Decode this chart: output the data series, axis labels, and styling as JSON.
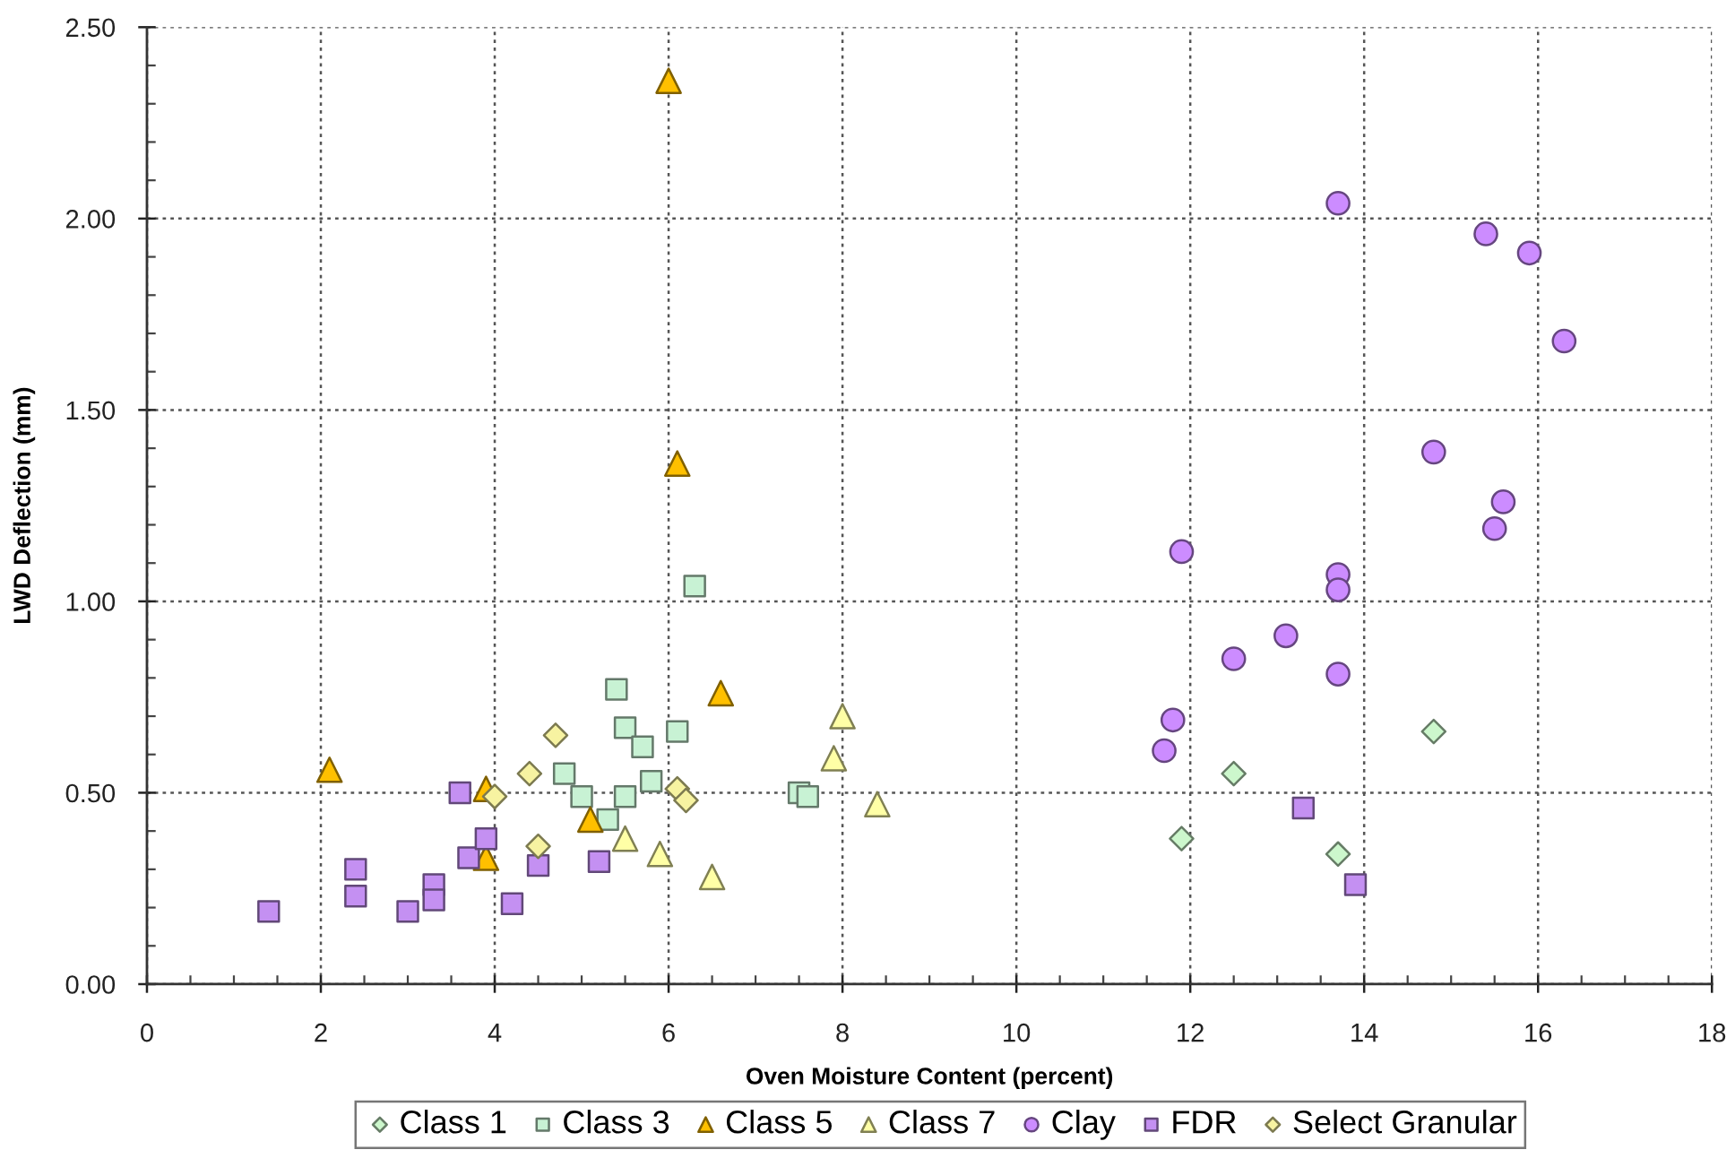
{
  "chart_data": {
    "type": "scatter",
    "xlabel": "Oven Moisture Content (percent)",
    "ylabel": "LWD Deflection (mm)",
    "xlim": [
      0,
      18
    ],
    "ylim": [
      0,
      2.5
    ],
    "xticks": [
      0,
      {
        "value": 0.5,
        "label": null
      },
      {
        "value": 1,
        "label": null
      },
      {
        "value": 1.5,
        "label": null
      },
      2,
      {
        "value": 2.5,
        "label": null
      },
      {
        "value": 3,
        "label": null
      },
      {
        "value": 3.5,
        "label": null
      },
      4,
      {
        "value": 4.5,
        "label": null
      },
      {
        "value": 5,
        "label": null
      },
      {
        "value": 5.5,
        "label": null
      },
      6,
      {
        "value": 6.5,
        "label": null
      },
      {
        "value": 7,
        "label": null
      },
      {
        "value": 7.5,
        "label": null
      },
      8,
      {
        "value": 8.5,
        "label": null
      },
      {
        "value": 9,
        "label": null
      },
      {
        "value": 9.5,
        "label": null
      },
      10,
      {
        "value": 10.5,
        "label": null
      },
      {
        "value": 11,
        "label": null
      },
      {
        "value": 11.5,
        "label": null
      },
      12,
      {
        "value": 12.5,
        "label": null
      },
      {
        "value": 13,
        "label": null
      },
      {
        "value": 13.5,
        "label": null
      },
      14,
      {
        "value": 14.5,
        "label": null
      },
      {
        "value": 15,
        "label": null
      },
      {
        "value": 15.5,
        "label": null
      },
      16,
      {
        "value": 16.5,
        "label": null
      },
      {
        "value": 17,
        "label": null
      },
      {
        "value": 17.5,
        "label": null
      },
      18
    ],
    "yticks": [
      {
        "value": 0,
        "label": "0.00"
      },
      {
        "value": 0.1,
        "label": null
      },
      {
        "value": 0.2,
        "label": null
      },
      {
        "value": 0.3,
        "label": null
      },
      {
        "value": 0.4,
        "label": null
      },
      {
        "value": 0.5,
        "label": "0.50"
      },
      {
        "value": 0.6,
        "label": null
      },
      {
        "value": 0.7,
        "label": null
      },
      {
        "value": 0.8,
        "label": null
      },
      {
        "value": 0.9,
        "label": null
      },
      {
        "value": 1.0,
        "label": "1.00"
      },
      {
        "value": 1.1,
        "label": null
      },
      {
        "value": 1.2,
        "label": null
      },
      {
        "value": 1.3,
        "label": null
      },
      {
        "value": 1.4,
        "label": null
      },
      {
        "value": 1.5,
        "label": "1.50"
      },
      {
        "value": 1.6,
        "label": null
      },
      {
        "value": 1.7,
        "label": null
      },
      {
        "value": 1.8,
        "label": null
      },
      {
        "value": 1.9,
        "label": null
      },
      {
        "value": 2.0,
        "label": "2.00"
      },
      {
        "value": 2.1,
        "label": null
      },
      {
        "value": 2.2,
        "label": null
      },
      {
        "value": 2.3,
        "label": null
      },
      {
        "value": 2.4,
        "label": null
      },
      {
        "value": 2.5,
        "label": "2.50"
      }
    ],
    "grid": true,
    "legend": "bottom",
    "series": [
      {
        "name": "Class 1",
        "marker": "diamond",
        "color": "#ccf7cc",
        "x": [
          11.9,
          12.5,
          13.7,
          14.8
        ],
        "values": [
          0.38,
          0.55,
          0.34,
          0.66
        ]
      },
      {
        "name": "Class 3",
        "marker": "square",
        "color": "#c8f2d4",
        "x": [
          6.3,
          5.4,
          5.5,
          5.7,
          6.1,
          4.8,
          5.0,
          5.5,
          5.3,
          5.8,
          7.5,
          7.6
        ],
        "values": [
          1.04,
          0.77,
          0.67,
          0.62,
          0.66,
          0.55,
          0.49,
          0.49,
          0.43,
          0.53,
          0.5,
          0.49
        ]
      },
      {
        "name": "Class 5",
        "marker": "triangle",
        "color": "#ffc000",
        "x": [
          6.0,
          6.1,
          6.6,
          2.1,
          3.9,
          3.9,
          5.1
        ],
        "values": [
          2.36,
          1.36,
          0.76,
          0.56,
          0.51,
          0.33,
          0.43
        ]
      },
      {
        "name": "Class 7",
        "marker": "triangle",
        "color": "#ffffa6",
        "x": [
          8.0,
          7.9,
          8.4,
          5.5,
          5.9,
          6.5
        ],
        "values": [
          0.7,
          0.59,
          0.47,
          0.38,
          0.34,
          0.28
        ]
      },
      {
        "name": "Clay",
        "marker": "circle",
        "color": "#cc8cff",
        "x": [
          13.7,
          15.4,
          15.9,
          16.3,
          14.8,
          15.6,
          15.5,
          11.9,
          13.7,
          13.7,
          13.1,
          12.5,
          13.7,
          11.8,
          11.7
        ],
        "values": [
          2.04,
          1.96,
          1.91,
          1.68,
          1.39,
          1.26,
          1.19,
          1.13,
          1.07,
          1.03,
          0.91,
          0.85,
          0.81,
          0.69,
          0.61
        ]
      },
      {
        "name": "FDR",
        "marker": "square",
        "color": "#c490f2",
        "x": [
          1.4,
          2.4,
          2.4,
          3.0,
          3.3,
          3.3,
          3.6,
          3.7,
          3.9,
          4.2,
          4.5,
          5.2,
          13.3,
          13.9
        ],
        "values": [
          0.19,
          0.3,
          0.23,
          0.19,
          0.26,
          0.22,
          0.5,
          0.33,
          0.38,
          0.21,
          0.31,
          0.32,
          0.46,
          0.26
        ]
      },
      {
        "name": "Select Granular",
        "marker": "diamond",
        "color": "#f7f3a1",
        "x": [
          4.0,
          4.4,
          4.7,
          6.1,
          6.2,
          4.5
        ],
        "values": [
          0.49,
          0.55,
          0.65,
          0.51,
          0.48,
          0.36
        ]
      }
    ]
  }
}
